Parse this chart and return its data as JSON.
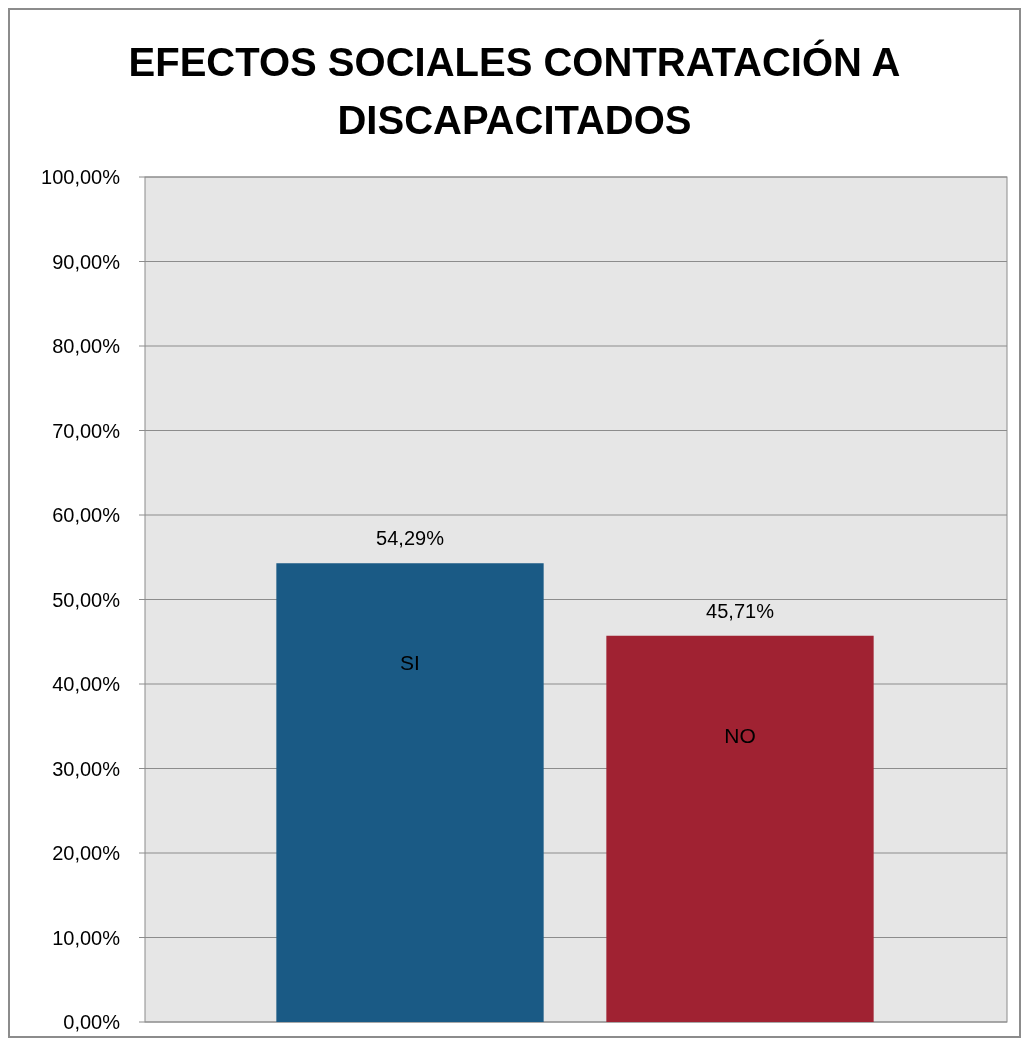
{
  "chart_data": {
    "type": "bar",
    "title": "EFECTOS SOCIALES CONTRATACIÓN A DISCAPACITADOS",
    "categories": [
      "SI",
      "NO"
    ],
    "values": [
      54.29,
      45.71
    ],
    "value_labels": [
      "54,29%",
      "45,71%"
    ],
    "colors": [
      "#1a5a85",
      "#a02232"
    ],
    "ylim": [
      0,
      100
    ],
    "yticks": [
      {
        "value": 0,
        "label": "0,00%"
      },
      {
        "value": 10,
        "label": "10,00%"
      },
      {
        "value": 20,
        "label": "20,00%"
      },
      {
        "value": 30,
        "label": "30,00%"
      },
      {
        "value": 40,
        "label": "40,00%"
      },
      {
        "value": 50,
        "label": "50,00%"
      },
      {
        "value": 60,
        "label": "60,00%"
      },
      {
        "value": 70,
        "label": "70,00%"
      },
      {
        "value": 80,
        "label": "80,00%"
      },
      {
        "value": 90,
        "label": "90,00%"
      },
      {
        "value": 100,
        "label": "100,00%"
      }
    ],
    "grid": "y",
    "tick_labels": "y"
  }
}
